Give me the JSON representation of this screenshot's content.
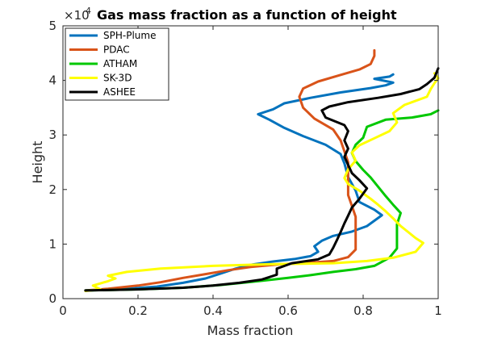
{
  "chart_data": {
    "type": "line",
    "title": "Gas mass fraction as a function of height",
    "xlabel": "Mass fraction",
    "ylabel": "Height",
    "xlim": [
      0,
      1
    ],
    "ylim": [
      0,
      50000
    ],
    "x_ticks": [
      "0",
      "0.2",
      "0.4",
      "0.6",
      "0.8",
      "1"
    ],
    "y_ticks": [
      "0",
      "1",
      "2",
      "3",
      "4",
      "5"
    ],
    "y_exponent": {
      "base": "×10",
      "power": "4"
    },
    "grid": false,
    "legend_position": "top-left",
    "series": [
      {
        "name": "SPH-Plume",
        "color": "#0072BD",
        "points": [
          [
            0.06,
            1500
          ],
          [
            0.15,
            1700
          ],
          [
            0.25,
            2200
          ],
          [
            0.32,
            2900
          ],
          [
            0.38,
            3700
          ],
          [
            0.42,
            4600
          ],
          [
            0.46,
            5500
          ],
          [
            0.5,
            6200
          ],
          [
            0.56,
            6800
          ],
          [
            0.62,
            7300
          ],
          [
            0.66,
            7800
          ],
          [
            0.68,
            8600
          ],
          [
            0.67,
            9600
          ],
          [
            0.69,
            10600
          ],
          [
            0.72,
            11500
          ],
          [
            0.77,
            12300
          ],
          [
            0.81,
            13300
          ],
          [
            0.85,
            15300
          ],
          [
            0.83,
            16300
          ],
          [
            0.79,
            17700
          ],
          [
            0.78,
            19800
          ],
          [
            0.76,
            22300
          ],
          [
            0.75,
            24800
          ],
          [
            0.74,
            26500
          ],
          [
            0.7,
            28200
          ],
          [
            0.64,
            29800
          ],
          [
            0.59,
            31300
          ],
          [
            0.55,
            32800
          ],
          [
            0.52,
            33800
          ],
          [
            0.56,
            34700
          ],
          [
            0.59,
            35800
          ],
          [
            0.66,
            36800
          ],
          [
            0.74,
            37800
          ],
          [
            0.82,
            38600
          ],
          [
            0.86,
            39100
          ],
          [
            0.88,
            39600
          ],
          [
            0.83,
            40300
          ],
          [
            0.87,
            40700
          ],
          [
            0.88,
            41100
          ]
        ]
      },
      {
        "name": "PDAC",
        "color": "#D95319",
        "points": [
          [
            0.06,
            1500
          ],
          [
            0.12,
            1800
          ],
          [
            0.2,
            2400
          ],
          [
            0.26,
            3000
          ],
          [
            0.32,
            3800
          ],
          [
            0.38,
            4500
          ],
          [
            0.44,
            5200
          ],
          [
            0.5,
            5800
          ],
          [
            0.58,
            6300
          ],
          [
            0.66,
            6600
          ],
          [
            0.72,
            6900
          ],
          [
            0.76,
            7600
          ],
          [
            0.78,
            9000
          ],
          [
            0.78,
            11000
          ],
          [
            0.78,
            13000
          ],
          [
            0.78,
            15000
          ],
          [
            0.77,
            17000
          ],
          [
            0.76,
            19000
          ],
          [
            0.76,
            21000
          ],
          [
            0.76,
            23000
          ],
          [
            0.76,
            25000
          ],
          [
            0.75,
            27000
          ],
          [
            0.74,
            29000
          ],
          [
            0.72,
            31000
          ],
          [
            0.67,
            33000
          ],
          [
            0.64,
            35000
          ],
          [
            0.63,
            37000
          ],
          [
            0.64,
            38500
          ],
          [
            0.68,
            39800
          ],
          [
            0.74,
            41000
          ],
          [
            0.79,
            42000
          ],
          [
            0.82,
            43000
          ],
          [
            0.83,
            44500
          ],
          [
            0.83,
            45500
          ]
        ]
      },
      {
        "name": "ATHAM",
        "color": "#00C800",
        "points": [
          [
            0.06,
            1500
          ],
          [
            0.2,
            1700
          ],
          [
            0.32,
            2000
          ],
          [
            0.42,
            2500
          ],
          [
            0.52,
            3200
          ],
          [
            0.6,
            3800
          ],
          [
            0.66,
            4300
          ],
          [
            0.72,
            4900
          ],
          [
            0.78,
            5400
          ],
          [
            0.83,
            6000
          ],
          [
            0.87,
            7500
          ],
          [
            0.89,
            9200
          ],
          [
            0.89,
            11500
          ],
          [
            0.89,
            13600
          ],
          [
            0.9,
            15700
          ],
          [
            0.88,
            17200
          ],
          [
            0.86,
            18800
          ],
          [
            0.84,
            20500
          ],
          [
            0.82,
            22200
          ],
          [
            0.8,
            23600
          ],
          [
            0.78,
            25200
          ],
          [
            0.77,
            26700
          ],
          [
            0.78,
            28200
          ],
          [
            0.8,
            29500
          ],
          [
            0.81,
            31500
          ],
          [
            0.86,
            32800
          ],
          [
            0.93,
            33200
          ],
          [
            0.98,
            33800
          ],
          [
            1.0,
            34500
          ]
        ]
      },
      {
        "name": "SK-3D",
        "color": "#FFFF00",
        "points": [
          [
            0.06,
            1400
          ],
          [
            0.1,
            1700
          ],
          [
            0.08,
            2400
          ],
          [
            0.12,
            3200
          ],
          [
            0.14,
            3700
          ],
          [
            0.12,
            4200
          ],
          [
            0.17,
            4900
          ],
          [
            0.26,
            5500
          ],
          [
            0.4,
            6000
          ],
          [
            0.55,
            6300
          ],
          [
            0.72,
            6500
          ],
          [
            0.81,
            6900
          ],
          [
            0.88,
            7500
          ],
          [
            0.94,
            8600
          ],
          [
            0.96,
            10200
          ],
          [
            0.94,
            11100
          ],
          [
            0.92,
            12200
          ],
          [
            0.9,
            13300
          ],
          [
            0.88,
            14700
          ],
          [
            0.86,
            16000
          ],
          [
            0.84,
            17200
          ],
          [
            0.82,
            18300
          ],
          [
            0.79,
            19800
          ],
          [
            0.76,
            21000
          ],
          [
            0.75,
            22100
          ],
          [
            0.76,
            23700
          ],
          [
            0.78,
            25300
          ],
          [
            0.77,
            26800
          ],
          [
            0.79,
            28100
          ],
          [
            0.83,
            29400
          ],
          [
            0.87,
            30700
          ],
          [
            0.89,
            32300
          ],
          [
            0.88,
            34000
          ],
          [
            0.91,
            35500
          ],
          [
            0.97,
            37000
          ],
          [
            0.98,
            38400
          ],
          [
            0.99,
            39500
          ],
          [
            1.0,
            40400
          ],
          [
            0.99,
            41300
          ]
        ]
      },
      {
        "name": "ASHEE",
        "color": "#000000",
        "points": [
          [
            0.06,
            1500
          ],
          [
            0.2,
            1700
          ],
          [
            0.32,
            2000
          ],
          [
            0.4,
            2400
          ],
          [
            0.47,
            2900
          ],
          [
            0.53,
            3500
          ],
          [
            0.57,
            4400
          ],
          [
            0.57,
            5500
          ],
          [
            0.61,
            6500
          ],
          [
            0.68,
            7200
          ],
          [
            0.71,
            8100
          ],
          [
            0.72,
            9300
          ],
          [
            0.73,
            10700
          ],
          [
            0.74,
            12200
          ],
          [
            0.75,
            13800
          ],
          [
            0.76,
            15200
          ],
          [
            0.77,
            16700
          ],
          [
            0.79,
            18300
          ],
          [
            0.81,
            20200
          ],
          [
            0.79,
            21700
          ],
          [
            0.77,
            23000
          ],
          [
            0.76,
            24500
          ],
          [
            0.75,
            26000
          ],
          [
            0.76,
            27500
          ],
          [
            0.75,
            29000
          ],
          [
            0.76,
            30700
          ],
          [
            0.75,
            31800
          ],
          [
            0.7,
            33200
          ],
          [
            0.69,
            34500
          ],
          [
            0.71,
            35200
          ],
          [
            0.76,
            36000
          ],
          [
            0.84,
            36800
          ],
          [
            0.9,
            37500
          ],
          [
            0.95,
            38400
          ],
          [
            0.97,
            39300
          ],
          [
            0.99,
            40500
          ],
          [
            1.0,
            42200
          ]
        ]
      }
    ]
  }
}
